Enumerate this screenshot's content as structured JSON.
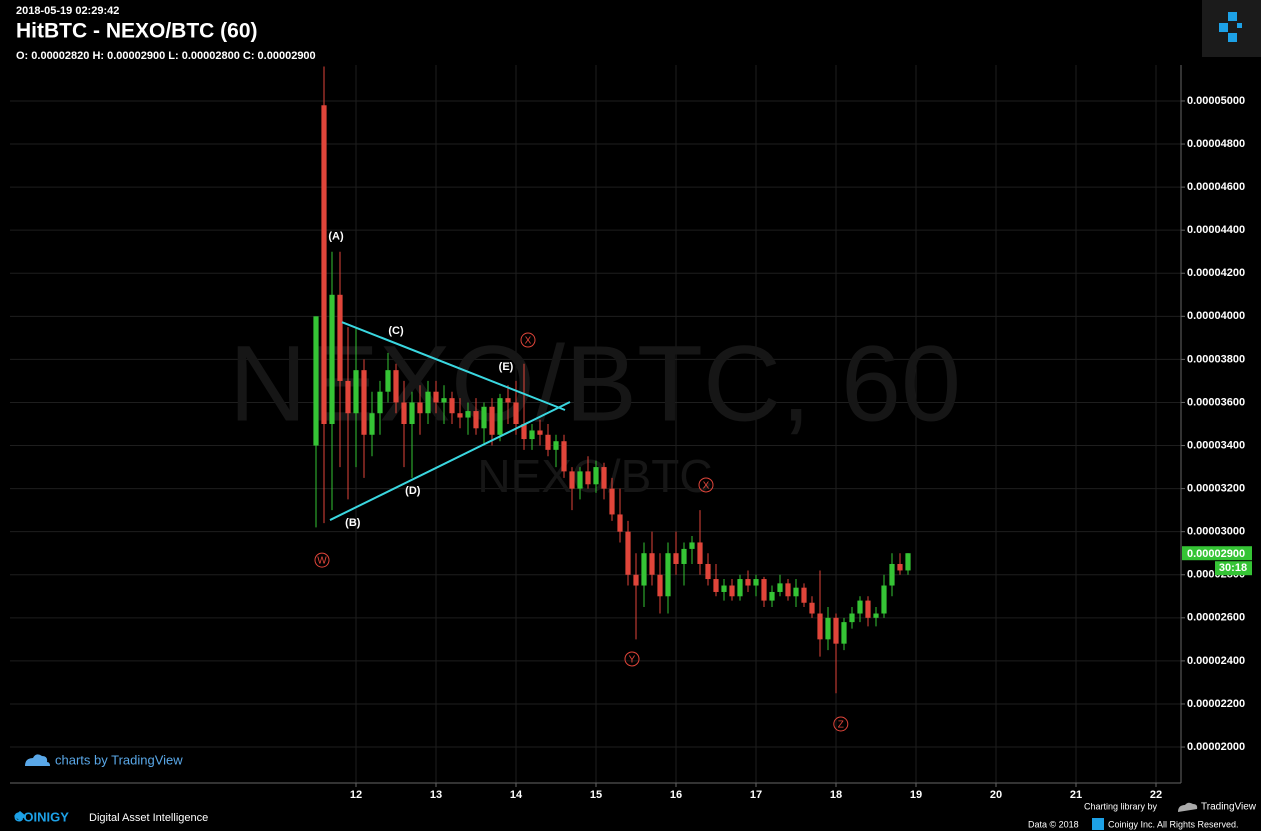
{
  "chart_data": {
    "type": "candlestick",
    "timestamp": "2018-05-19 02:29:42",
    "title": "HitBTC - NEXO/BTC (60)",
    "ohlc_line": "O: 0.00002820 H: 0.00002900 L: 0.00002800 C: 0.00002900",
    "watermark": "NEXO/BTC, 60",
    "watermark_sub": "NEXO/BTC",
    "price_label": "0.00002900",
    "countdown": "30:18",
    "up_color": "#35c435",
    "down_color": "#e0453a",
    "trendline_color": "#3ad7e0",
    "grid": true,
    "x": [
      11.5,
      11.6,
      11.7,
      11.8,
      11.9,
      12.0,
      12.1,
      12.2,
      12.3,
      12.4,
      12.5,
      12.6,
      12.7,
      12.8,
      12.9,
      13.0,
      13.1,
      13.2,
      13.3,
      13.4,
      13.5,
      13.6,
      13.7,
      13.8,
      13.9,
      14.0,
      14.1,
      14.2,
      14.3,
      14.4,
      14.5,
      14.6,
      14.7,
      14.8,
      14.9,
      15.0,
      15.1,
      15.2,
      15.3,
      15.4,
      15.5,
      15.6,
      15.7,
      15.8,
      15.9,
      16.0,
      16.1,
      16.2,
      16.3,
      16.4,
      16.5,
      16.6,
      16.7,
      16.8,
      16.9,
      17.0,
      17.1,
      17.2,
      17.3,
      17.4,
      17.5,
      17.6,
      17.7,
      17.8,
      17.9,
      18.0,
      18.1,
      18.2,
      18.3,
      18.4,
      18.5,
      18.6,
      18.7,
      18.8,
      18.9
    ],
    "open": [
      3.4e-05,
      4.98e-05,
      3.5e-05,
      4.1e-05,
      3.7e-05,
      3.55e-05,
      3.75e-05,
      3.45e-05,
      3.55e-05,
      3.65e-05,
      3.75e-05,
      3.6e-05,
      3.5e-05,
      3.6e-05,
      3.55e-05,
      3.65e-05,
      3.6e-05,
      3.62e-05,
      3.55e-05,
      3.53e-05,
      3.56e-05,
      3.48e-05,
      3.58e-05,
      3.45e-05,
      3.62e-05,
      3.6e-05,
      3.5e-05,
      3.43e-05,
      3.47e-05,
      3.45e-05,
      3.38e-05,
      3.42e-05,
      3.28e-05,
      3.2e-05,
      3.28e-05,
      3.22e-05,
      3.3e-05,
      3.2e-05,
      3.08e-05,
      3e-05,
      2.8e-05,
      2.75e-05,
      2.9e-05,
      2.8e-05,
      2.7e-05,
      2.9e-05,
      2.85e-05,
      2.92e-05,
      2.95e-05,
      2.85e-05,
      2.78e-05,
      2.72e-05,
      2.75e-05,
      2.7e-05,
      2.78e-05,
      2.75e-05,
      2.78e-05,
      2.68e-05,
      2.72e-05,
      2.76e-05,
      2.7e-05,
      2.74e-05,
      2.67e-05,
      2.62e-05,
      2.5e-05,
      2.6e-05,
      2.48e-05,
      2.58e-05,
      2.62e-05,
      2.68e-05,
      2.6e-05,
      2.62e-05,
      2.75e-05,
      2.85e-05,
      2.82e-05
    ],
    "high": [
      4e-05,
      5.16e-05,
      4.3e-05,
      4.3e-05,
      3.95e-05,
      3.95e-05,
      3.8e-05,
      3.65e-05,
      3.7e-05,
      3.83e-05,
      3.78e-05,
      3.7e-05,
      3.65e-05,
      3.68e-05,
      3.7e-05,
      3.7e-05,
      3.68e-05,
      3.65e-05,
      3.62e-05,
      3.6e-05,
      3.62e-05,
      3.6e-05,
      3.62e-05,
      3.64e-05,
      3.68e-05,
      3.7e-05,
      3.78e-05,
      3.5e-05,
      3.52e-05,
      3.5e-05,
      3.45e-05,
      3.45e-05,
      3.3e-05,
      3.3e-05,
      3.35e-05,
      3.33e-05,
      3.32e-05,
      3.25e-05,
      3.2e-05,
      3.05e-05,
      2.9e-05,
      2.95e-05,
      3e-05,
      2.9e-05,
      2.95e-05,
      3e-05,
      2.95e-05,
      2.98e-05,
      3.1e-05,
      2.9e-05,
      2.85e-05,
      2.78e-05,
      2.78e-05,
      2.8e-05,
      2.82e-05,
      2.8e-05,
      2.79e-05,
      2.75e-05,
      2.8e-05,
      2.78e-05,
      2.78e-05,
      2.76e-05,
      2.7e-05,
      2.82e-05,
      2.65e-05,
      2.62e-05,
      2.6e-05,
      2.65e-05,
      2.7e-05,
      2.7e-05,
      2.65e-05,
      2.8e-05,
      2.9e-05,
      2.9e-05,
      2.9e-05
    ],
    "low": [
      3.02e-05,
      3.04e-05,
      3.1e-05,
      3.3e-05,
      3.15e-05,
      3.3e-05,
      3.25e-05,
      3.35e-05,
      3.45e-05,
      3.6e-05,
      3.55e-05,
      3.3e-05,
      3.25e-05,
      3.45e-05,
      3.5e-05,
      3.55e-05,
      3.5e-05,
      3.5e-05,
      3.48e-05,
      3.45e-05,
      3.45e-05,
      3.4e-05,
      3.4e-05,
      3.42e-05,
      3.5e-05,
      3.45e-05,
      3.38e-05,
      3.38e-05,
      3.4e-05,
      3.35e-05,
      3.3e-05,
      3.25e-05,
      3.1e-05,
      3.15e-05,
      3.2e-05,
      3.18e-05,
      3.15e-05,
      3.05e-05,
      2.95e-05,
      2.75e-05,
      2.5e-05,
      2.65e-05,
      2.75e-05,
      2.62e-05,
      2.62e-05,
      2.8e-05,
      2.75e-05,
      2.85e-05,
      2.8e-05,
      2.75e-05,
      2.7e-05,
      2.68e-05,
      2.68e-05,
      2.68e-05,
      2.72e-05,
      2.7e-05,
      2.65e-05,
      2.65e-05,
      2.7e-05,
      2.68e-05,
      2.65e-05,
      2.65e-05,
      2.6e-05,
      2.42e-05,
      2.45e-05,
      2.25e-05,
      2.45e-05,
      2.55e-05,
      2.58e-05,
      2.56e-05,
      2.56e-05,
      2.6e-05,
      2.7e-05,
      2.8e-05,
      2.8e-05
    ],
    "close": [
      4e-05,
      3.5e-05,
      4.1e-05,
      3.7e-05,
      3.55e-05,
      3.75e-05,
      3.45e-05,
      3.55e-05,
      3.65e-05,
      3.75e-05,
      3.6e-05,
      3.5e-05,
      3.6e-05,
      3.55e-05,
      3.65e-05,
      3.6e-05,
      3.62e-05,
      3.55e-05,
      3.53e-05,
      3.56e-05,
      3.48e-05,
      3.58e-05,
      3.45e-05,
      3.62e-05,
      3.6e-05,
      3.5e-05,
      3.43e-05,
      3.47e-05,
      3.45e-05,
      3.38e-05,
      3.42e-05,
      3.28e-05,
      3.2e-05,
      3.28e-05,
      3.22e-05,
      3.3e-05,
      3.2e-05,
      3.08e-05,
      3e-05,
      2.8e-05,
      2.75e-05,
      2.9e-05,
      2.8e-05,
      2.7e-05,
      2.9e-05,
      2.85e-05,
      2.92e-05,
      2.95e-05,
      2.85e-05,
      2.78e-05,
      2.72e-05,
      2.75e-05,
      2.7e-05,
      2.78e-05,
      2.75e-05,
      2.78e-05,
      2.68e-05,
      2.72e-05,
      2.76e-05,
      2.7e-05,
      2.74e-05,
      2.67e-05,
      2.62e-05,
      2.5e-05,
      2.6e-05,
      2.48e-05,
      2.58e-05,
      2.62e-05,
      2.68e-05,
      2.6e-05,
      2.62e-05,
      2.75e-05,
      2.85e-05,
      2.82e-05,
      2.9e-05
    ],
    "xlim": [
      7.675,
      22.3125
    ],
    "xticks": [
      12,
      13,
      14,
      15,
      16,
      17,
      18,
      19,
      20,
      21,
      22
    ],
    "ylim": [
      1.833e-05,
      5.167e-05
    ],
    "yticks": [
      {
        "value": 2e-05,
        "label": "0.00002000"
      },
      {
        "value": 2.2e-05,
        "label": "0.00002200"
      },
      {
        "value": 2.4e-05,
        "label": "0.00002400"
      },
      {
        "value": 2.6e-05,
        "label": "0.00002600"
      },
      {
        "value": 2.8e-05,
        "label": "0.00002800"
      },
      {
        "value": 3e-05,
        "label": "0.00003000"
      },
      {
        "value": 3.2e-05,
        "label": "0.00003200"
      },
      {
        "value": 3.4e-05,
        "label": "0.00003400"
      },
      {
        "value": 3.6e-05,
        "label": "0.00003600"
      },
      {
        "value": 3.8e-05,
        "label": "0.00003800"
      },
      {
        "value": 4e-05,
        "label": "0.00004000"
      },
      {
        "value": 4.2e-05,
        "label": "0.00004200"
      },
      {
        "value": 4.4e-05,
        "label": "0.00004400"
      },
      {
        "value": 4.6e-05,
        "label": "0.00004600"
      },
      {
        "value": 4.8e-05,
        "label": "0.00004800"
      },
      {
        "value": 5e-05,
        "label": "0.00005000"
      }
    ],
    "trendlines": [
      {
        "x": [
          11.825,
          14.6125
        ],
        "y": [
          3.973e-05,
          3.565e-05
        ]
      },
      {
        "x": [
          11.675,
          14.675
        ],
        "y": [
          3.054e-05,
          3.602e-05
        ]
      }
    ],
    "annotations": [
      {
        "text": "(A)",
        "x": 11.75,
        "y": 4.37e-05,
        "style": "plain"
      },
      {
        "text": "(B)",
        "x": 11.96,
        "y": 3.04e-05,
        "style": "plain"
      },
      {
        "text": "(C)",
        "x": 12.5,
        "y": 3.932e-05,
        "style": "plain"
      },
      {
        "text": "(D)",
        "x": 12.71,
        "y": 3.189e-05,
        "style": "plain"
      },
      {
        "text": "(E)",
        "x": 13.875,
        "y": 3.765e-05,
        "style": "plain"
      },
      {
        "text": "W",
        "x": 11.575,
        "y": 2.868e-05,
        "style": "circled"
      },
      {
        "text": "X",
        "x": 14.15,
        "y": 3.89e-05,
        "style": "circled"
      },
      {
        "text": "X",
        "x": 16.375,
        "y": 3.217e-05,
        "style": "circled"
      },
      {
        "text": "Y",
        "x": 15.45,
        "y": 2.409e-05,
        "style": "circled"
      },
      {
        "text": "Z",
        "x": 18.06,
        "y": 2.107e-05,
        "style": "circled"
      }
    ]
  },
  "footer": {
    "tv_credit": "charts by TradingView",
    "brand": "COINIGY",
    "tagline": "Digital Asset Intelligence",
    "library": "Charting library by",
    "library_name": "TradingView",
    "data_year": "Data © 2018",
    "rights": "Coinigy Inc. All Rights Reserved."
  }
}
